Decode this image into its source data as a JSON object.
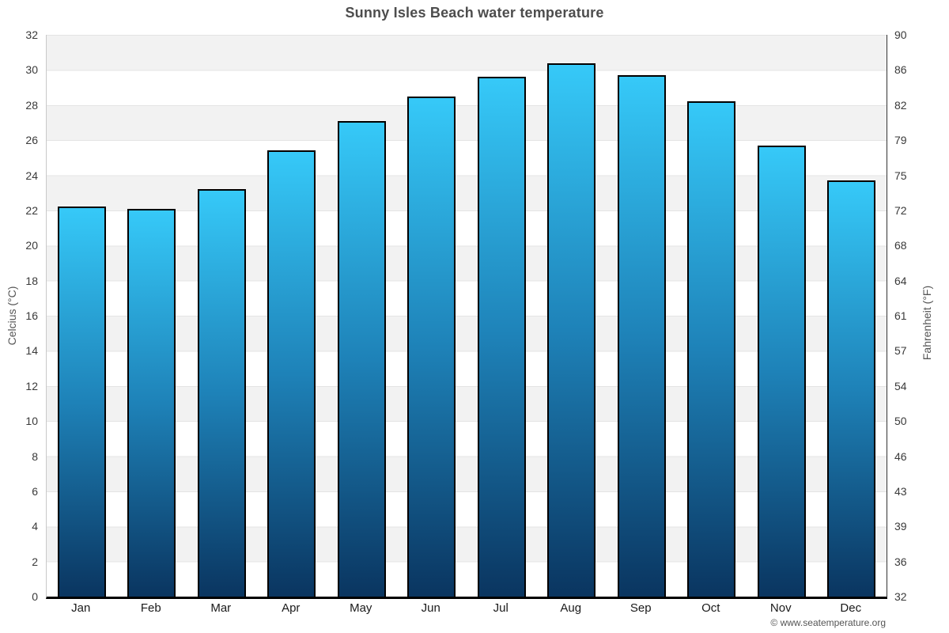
{
  "title": "Sunny Isles Beach water temperature",
  "footer": "© www.seatemperature.org",
  "axes": {
    "left_label": "Celcius (°C)",
    "right_label": "Fahrenheit (°F)",
    "celsius_ticks": [
      0,
      2,
      4,
      6,
      8,
      10,
      12,
      14,
      16,
      18,
      20,
      22,
      24,
      26,
      28,
      30,
      32
    ],
    "fahrenheit_ticks": [
      "32",
      "36",
      "39",
      "43",
      "46",
      "50",
      "54",
      "57",
      "61",
      "64",
      "68",
      "72",
      "75",
      "79",
      "82",
      "86",
      "90"
    ],
    "ymin": 0,
    "ymax": 32
  },
  "chart_data": {
    "type": "bar",
    "title": "Sunny Isles Beach water temperature",
    "categories": [
      "Jan",
      "Feb",
      "Mar",
      "Apr",
      "May",
      "Jun",
      "Jul",
      "Aug",
      "Sep",
      "Oct",
      "Nov",
      "Dec"
    ],
    "values": [
      22.2,
      22.1,
      23.2,
      25.4,
      27.1,
      28.5,
      29.6,
      30.4,
      29.7,
      28.2,
      25.7,
      23.7
    ],
    "series_name": "Water temperature (°C)",
    "xlabel": "",
    "ylabel": "Celcius (°C)",
    "ylabel_right": "Fahrenheit (°F)",
    "ylim": [
      0,
      32
    ],
    "grid": "alternating horizontal bands every 2°C, gray band at top (30–32)",
    "legend_position": "none"
  },
  "colors": {
    "bar_gradient_top": "#36c9f8",
    "bar_gradient_mid": "#1e82b8",
    "bar_gradient_bottom": "#0a3560",
    "bar_border": "#000000",
    "band_gray": "#f2f2f2",
    "band_white": "#ffffff",
    "grid_line": "#e4e4e4",
    "left_axis_line": "#c9c9c9",
    "right_axis_line": "#333333",
    "bottom_axis_line": "#000000",
    "title_color": "#4d4d4d",
    "tick_color": "#3a3a3a",
    "axis_label_color": "#555555",
    "footer_color": "#555555"
  }
}
